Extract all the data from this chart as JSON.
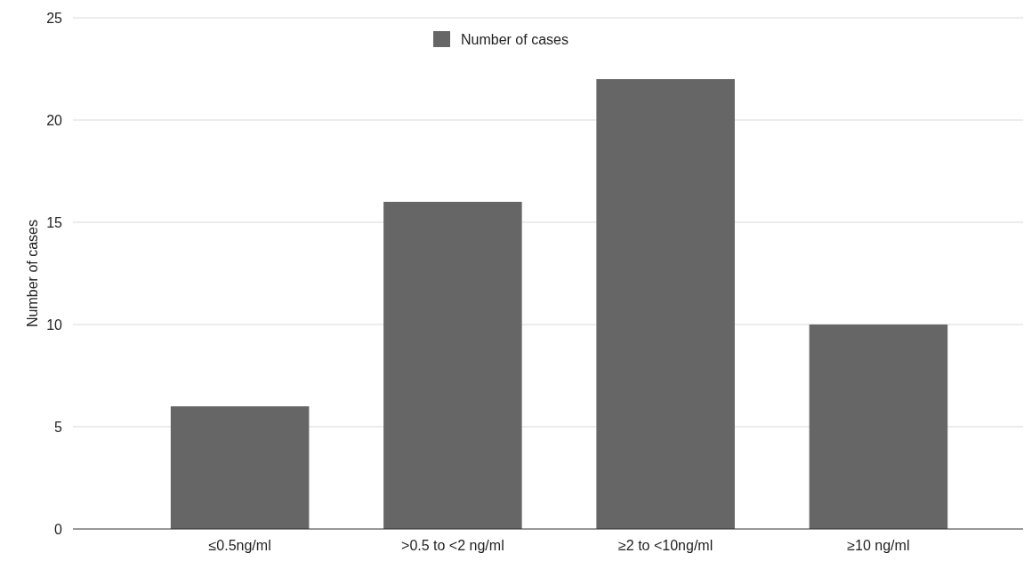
{
  "chart_data": {
    "type": "bar",
    "ylabel": "Number of cases",
    "categories": [
      "≤0.5ng/ml",
      ">0.5 to <2 ng/ml",
      "≥2 to <10ng/ml",
      "≥10 ng/ml"
    ],
    "series": [
      {
        "name": "Number of cases",
        "color": "#666666",
        "values": [
          6,
          16,
          22,
          10
        ]
      }
    ],
    "ylim": [
      0,
      25
    ],
    "yticks": [
      0,
      5,
      10,
      15,
      20,
      25
    ],
    "grid": "y",
    "legend": "top"
  }
}
